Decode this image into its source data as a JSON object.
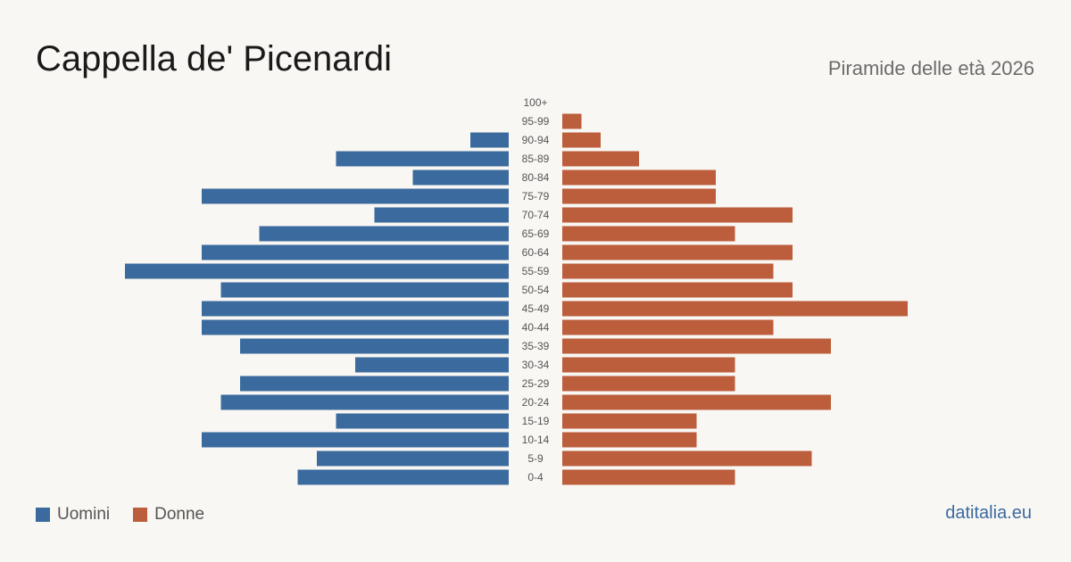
{
  "header": {
    "title": "Cappella de' Picenardi",
    "subtitle": "Piramide delle età 2026"
  },
  "legend": {
    "men_label": "Uomini",
    "women_label": "Donne"
  },
  "footer": {
    "source": "datitalia.eu"
  },
  "colors": {
    "men": "#3b6b9e",
    "women": "#bc5e3c",
    "background": "#f9f7f3"
  },
  "chart_data": {
    "type": "bar",
    "orientation": "horizontal-pyramid",
    "categories": [
      "100+",
      "95-99",
      "90-94",
      "85-89",
      "80-84",
      "75-79",
      "70-74",
      "65-69",
      "60-64",
      "55-59",
      "50-54",
      "45-49",
      "40-44",
      "35-39",
      "30-34",
      "25-29",
      "20-24",
      "15-19",
      "10-14",
      "5-9",
      "0-4"
    ],
    "series": [
      {
        "name": "Uomini",
        "values": [
          0,
          0,
          2,
          9,
          5,
          16,
          7,
          13,
          16,
          20,
          15,
          16,
          16,
          14,
          8,
          14,
          15,
          9,
          16,
          10,
          11
        ]
      },
      {
        "name": "Donne",
        "values": [
          0,
          1,
          2,
          4,
          8,
          8,
          12,
          9,
          12,
          11,
          12,
          18,
          11,
          14,
          9,
          9,
          14,
          7,
          7,
          13,
          9
        ]
      }
    ],
    "legend_position": "bottom-left",
    "grid": false
  }
}
